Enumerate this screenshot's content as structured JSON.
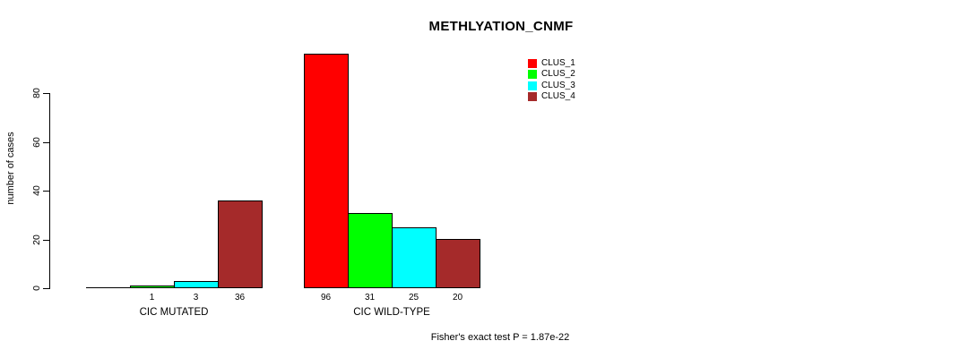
{
  "chart_data": {
    "type": "bar",
    "title": "METHLYATION_CNMF",
    "xlabel": "",
    "ylabel": "number of cases",
    "ylim": [
      0,
      80
    ],
    "yticks": [
      0,
      20,
      40,
      60,
      80
    ],
    "grid": false,
    "legend_position": "top-right",
    "categories": [
      "CIC MUTATED",
      "CIC WILD-TYPE"
    ],
    "series": [
      {
        "name": "CLUS_1",
        "color": "#FF0000",
        "values": [
          0,
          96
        ]
      },
      {
        "name": "CLUS_2",
        "color": "#00FF00",
        "values": [
          1,
          31
        ]
      },
      {
        "name": "CLUS_3",
        "color": "#00FFFF",
        "values": [
          3,
          25
        ]
      },
      {
        "name": "CLUS_4",
        "color": "#A52A2A",
        "values": [
          36,
          20
        ]
      }
    ],
    "value_labels": [
      [
        "",
        "1",
        "3",
        "36"
      ],
      [
        "96",
        "31",
        "25",
        "20"
      ]
    ],
    "annotation": "Fisher's exact test P = 1.87e-22",
    "axis_color": "#000000",
    "text_color": "#000000",
    "background_color": "#FFFFFF"
  }
}
